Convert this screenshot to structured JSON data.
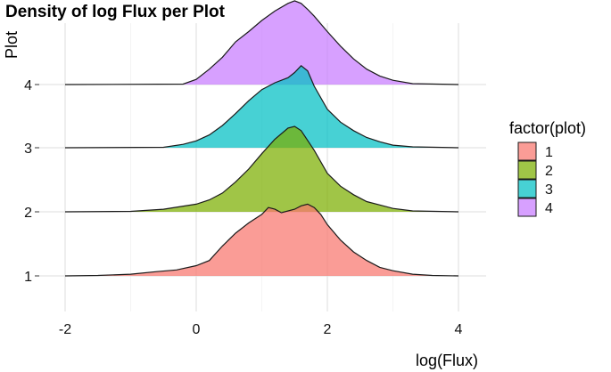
{
  "chart_data": {
    "type": "ridgeline",
    "title": "Density of log Flux per Plot",
    "xlabel": "log(Flux)",
    "ylabel": "Plot",
    "xlim": [
      -2.5,
      4.5
    ],
    "x_ticks": [
      -2,
      0,
      2,
      4
    ],
    "x_tick_labels": [
      "-2",
      "0",
      "2",
      "4"
    ],
    "y_categories": [
      "1",
      "2",
      "3",
      "4"
    ],
    "grid": true,
    "legend": {
      "title": "factor(plot)",
      "position": "right",
      "entries": [
        {
          "label": "1",
          "color": "#F8766D"
        },
        {
          "label": "2",
          "color": "#7CAE00"
        },
        {
          "label": "3",
          "color": "#00BFC4"
        },
        {
          "label": "4",
          "color": "#C77CFF"
        }
      ]
    },
    "series": [
      {
        "name": "1",
        "color": "#F8766D",
        "x": [
          -2.0,
          -1.5,
          -1.0,
          -0.6,
          -0.3,
          0.0,
          0.2,
          0.4,
          0.6,
          0.8,
          1.0,
          1.1,
          1.2,
          1.3,
          1.5,
          1.6,
          1.7,
          1.8,
          1.9,
          2.0,
          2.2,
          2.4,
          2.6,
          2.8,
          3.0,
          3.3,
          3.6,
          4.0
        ],
        "y": [
          0.0,
          0.005,
          0.02,
          0.05,
          0.07,
          0.12,
          0.18,
          0.35,
          0.5,
          0.62,
          0.72,
          0.8,
          0.78,
          0.74,
          0.78,
          0.82,
          0.84,
          0.8,
          0.72,
          0.6,
          0.42,
          0.28,
          0.18,
          0.1,
          0.06,
          0.02,
          0.005,
          0.0
        ]
      },
      {
        "name": "2",
        "color": "#7CAE00",
        "x": [
          -2.0,
          -1.0,
          -0.5,
          0.0,
          0.2,
          0.4,
          0.6,
          0.8,
          1.0,
          1.2,
          1.4,
          1.5,
          1.6,
          1.8,
          2.0,
          2.2,
          2.4,
          2.6,
          2.8,
          3.0,
          3.3,
          4.0
        ],
        "y": [
          0.0,
          0.005,
          0.03,
          0.09,
          0.14,
          0.22,
          0.35,
          0.5,
          0.68,
          0.85,
          0.98,
          1.0,
          0.95,
          0.72,
          0.45,
          0.3,
          0.2,
          0.12,
          0.08,
          0.04,
          0.01,
          0.0
        ]
      },
      {
        "name": "3",
        "color": "#00BFC4",
        "x": [
          -2.0,
          -0.5,
          -0.2,
          0.0,
          0.2,
          0.4,
          0.6,
          0.8,
          1.0,
          1.2,
          1.4,
          1.5,
          1.6,
          1.7,
          1.8,
          2.0,
          2.2,
          2.4,
          2.6,
          2.8,
          3.0,
          3.3,
          4.0
        ],
        "y": [
          0.0,
          0.005,
          0.04,
          0.08,
          0.15,
          0.26,
          0.4,
          0.55,
          0.68,
          0.76,
          0.82,
          0.88,
          0.96,
          0.9,
          0.72,
          0.45,
          0.3,
          0.2,
          0.12,
          0.07,
          0.03,
          0.01,
          0.0
        ]
      },
      {
        "name": "4",
        "color": "#C77CFF",
        "x": [
          -2.0,
          -0.2,
          0.0,
          0.2,
          0.4,
          0.6,
          0.8,
          1.0,
          1.2,
          1.4,
          1.5,
          1.6,
          1.7,
          1.8,
          2.0,
          2.2,
          2.4,
          2.6,
          2.8,
          3.0,
          3.3,
          4.0
        ],
        "y": [
          0.0,
          0.005,
          0.06,
          0.18,
          0.32,
          0.5,
          0.62,
          0.75,
          0.86,
          0.95,
          0.98,
          0.95,
          0.88,
          0.8,
          0.62,
          0.45,
          0.3,
          0.18,
          0.1,
          0.05,
          0.01,
          0.0
        ]
      }
    ]
  }
}
